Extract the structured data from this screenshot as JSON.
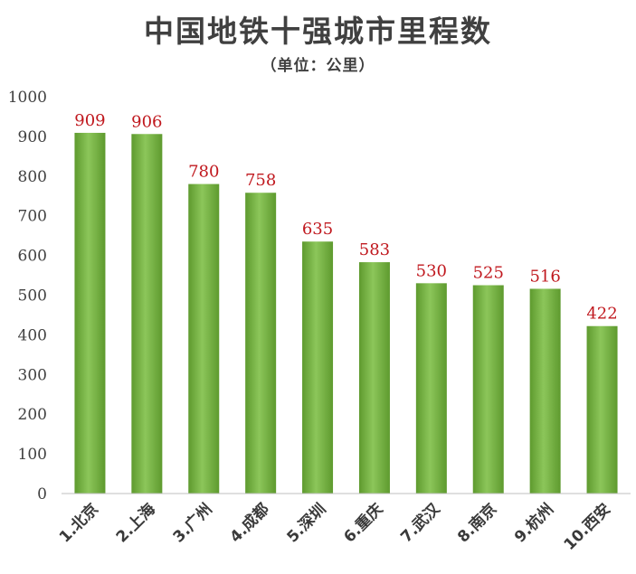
{
  "chart_data": {
    "type": "bar",
    "title": "中国地铁十强城市里程数",
    "subtitle": "（单位：公里）",
    "categories": [
      "1.北京",
      "2.上海",
      "3.广州",
      "4.成都",
      "5.深圳",
      "6.重庆",
      "7.武汉",
      "8.南京",
      "9.杭州",
      "10.西安"
    ],
    "values": [
      909,
      906,
      780,
      758,
      635,
      583,
      530,
      525,
      516,
      422
    ],
    "ylim": [
      0,
      1000
    ],
    "yticks": [
      0,
      100,
      200,
      300,
      400,
      500,
      600,
      700,
      800,
      900,
      1000
    ],
    "xlabel": "",
    "ylabel": "",
    "grid": false,
    "legend": "none",
    "colors": {
      "bar_light": "#8cc65a",
      "bar_dark": "#5e9a2e",
      "data_label": "#c0181e",
      "text": "#404040",
      "axis": "#bfbfbf"
    }
  }
}
